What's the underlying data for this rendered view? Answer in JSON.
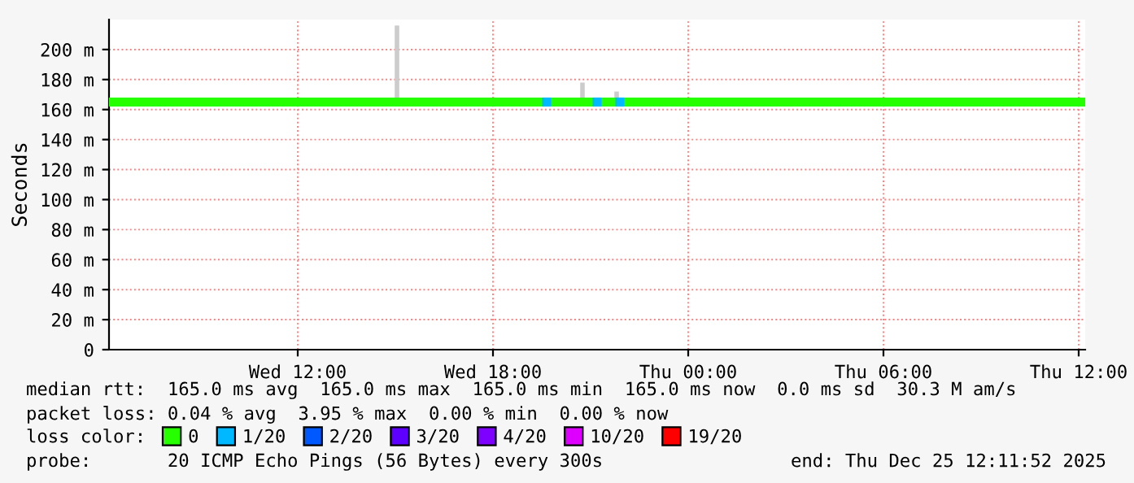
{
  "chart_data": {
    "type": "line",
    "ylabel": "Seconds",
    "xlim": [
      "2025-12-24T06:12",
      "2025-12-25T12:12"
    ],
    "xticks": [
      {
        "value": "2025-12-24T12:00",
        "label": "Wed 12:00"
      },
      {
        "value": "2025-12-24T18:00",
        "label": "Wed 18:00"
      },
      {
        "value": "2025-12-25T00:00",
        "label": "Thu 00:00"
      },
      {
        "value": "2025-12-25T06:00",
        "label": "Thu 06:00"
      },
      {
        "value": "2025-12-25T12:00",
        "label": "Thu 12:00"
      }
    ],
    "ylim": [
      0,
      220
    ],
    "yticks": [
      0,
      {
        "value": 20,
        "label": "20 m"
      },
      {
        "value": 40,
        "label": "40 m"
      },
      {
        "value": 60,
        "label": "60 m"
      },
      {
        "value": 80,
        "label": "80 m"
      },
      {
        "value": 100,
        "label": "100 m"
      },
      {
        "value": 120,
        "label": "120 m"
      },
      {
        "value": 140,
        "label": "140 m"
      },
      {
        "value": 160,
        "label": "160 m"
      },
      {
        "value": 180,
        "label": "180 m"
      },
      {
        "value": 200,
        "label": "200 m"
      }
    ],
    "grid": true,
    "legend": "bottom",
    "series": [
      {
        "color": "#cccccc",
        "x": [
          "2025-12-24T15:03",
          "2025-12-24T15:03"
        ],
        "values": [
          165,
          216
        ]
      },
      {
        "color": "#cccccc",
        "x": [
          "2025-12-24T20:45",
          "2025-12-24T20:45"
        ],
        "values": [
          165,
          178
        ]
      },
      {
        "color": "#cccccc",
        "x": [
          "2025-12-24T21:48",
          "2025-12-24T21:48"
        ],
        "values": [
          165,
          172
        ]
      },
      {
        "name": "0",
        "color": "#26ff00",
        "x": [
          "2025-12-24T06:12",
          "2025-12-25T12:12"
        ],
        "values": [
          165,
          165
        ]
      },
      {
        "name": "1/20",
        "type": "scatter",
        "marker": "square",
        "color": "#00b8ff",
        "x": [
          "2025-12-24T19:39",
          "2025-12-24T21:12",
          "2025-12-24T21:54"
        ],
        "values": [
          165,
          165,
          165
        ]
      },
      {
        "name": "2/20",
        "type": "scatter",
        "marker": "square",
        "color": "#0059ff"
      },
      {
        "name": "3/20",
        "type": "scatter",
        "marker": "square",
        "color": "#5e00ff"
      },
      {
        "name": "4/20",
        "type": "scatter",
        "marker": "square",
        "color": "#7e00ff"
      },
      {
        "name": "10/20",
        "type": "scatter",
        "marker": "square",
        "color": "#dd00ff"
      },
      {
        "name": "19/20",
        "type": "scatter",
        "marker": "square",
        "color": "#ff0000"
      }
    ],
    "annotations": [
      "median rtt:  165.0 ms avg  165.0 ms max  165.0 ms min  165.0 ms now  0.0 ms sd  30.3 M am/s",
      "packet loss: 0.04 % avg  3.95 % max  0.00 % min  0.00 % now",
      "loss color:",
      "probe:       20 ICMP Echo Pings (56 Bytes) every 300s",
      "end: Thu Dec 25 12:11:52 2025"
    ]
  }
}
